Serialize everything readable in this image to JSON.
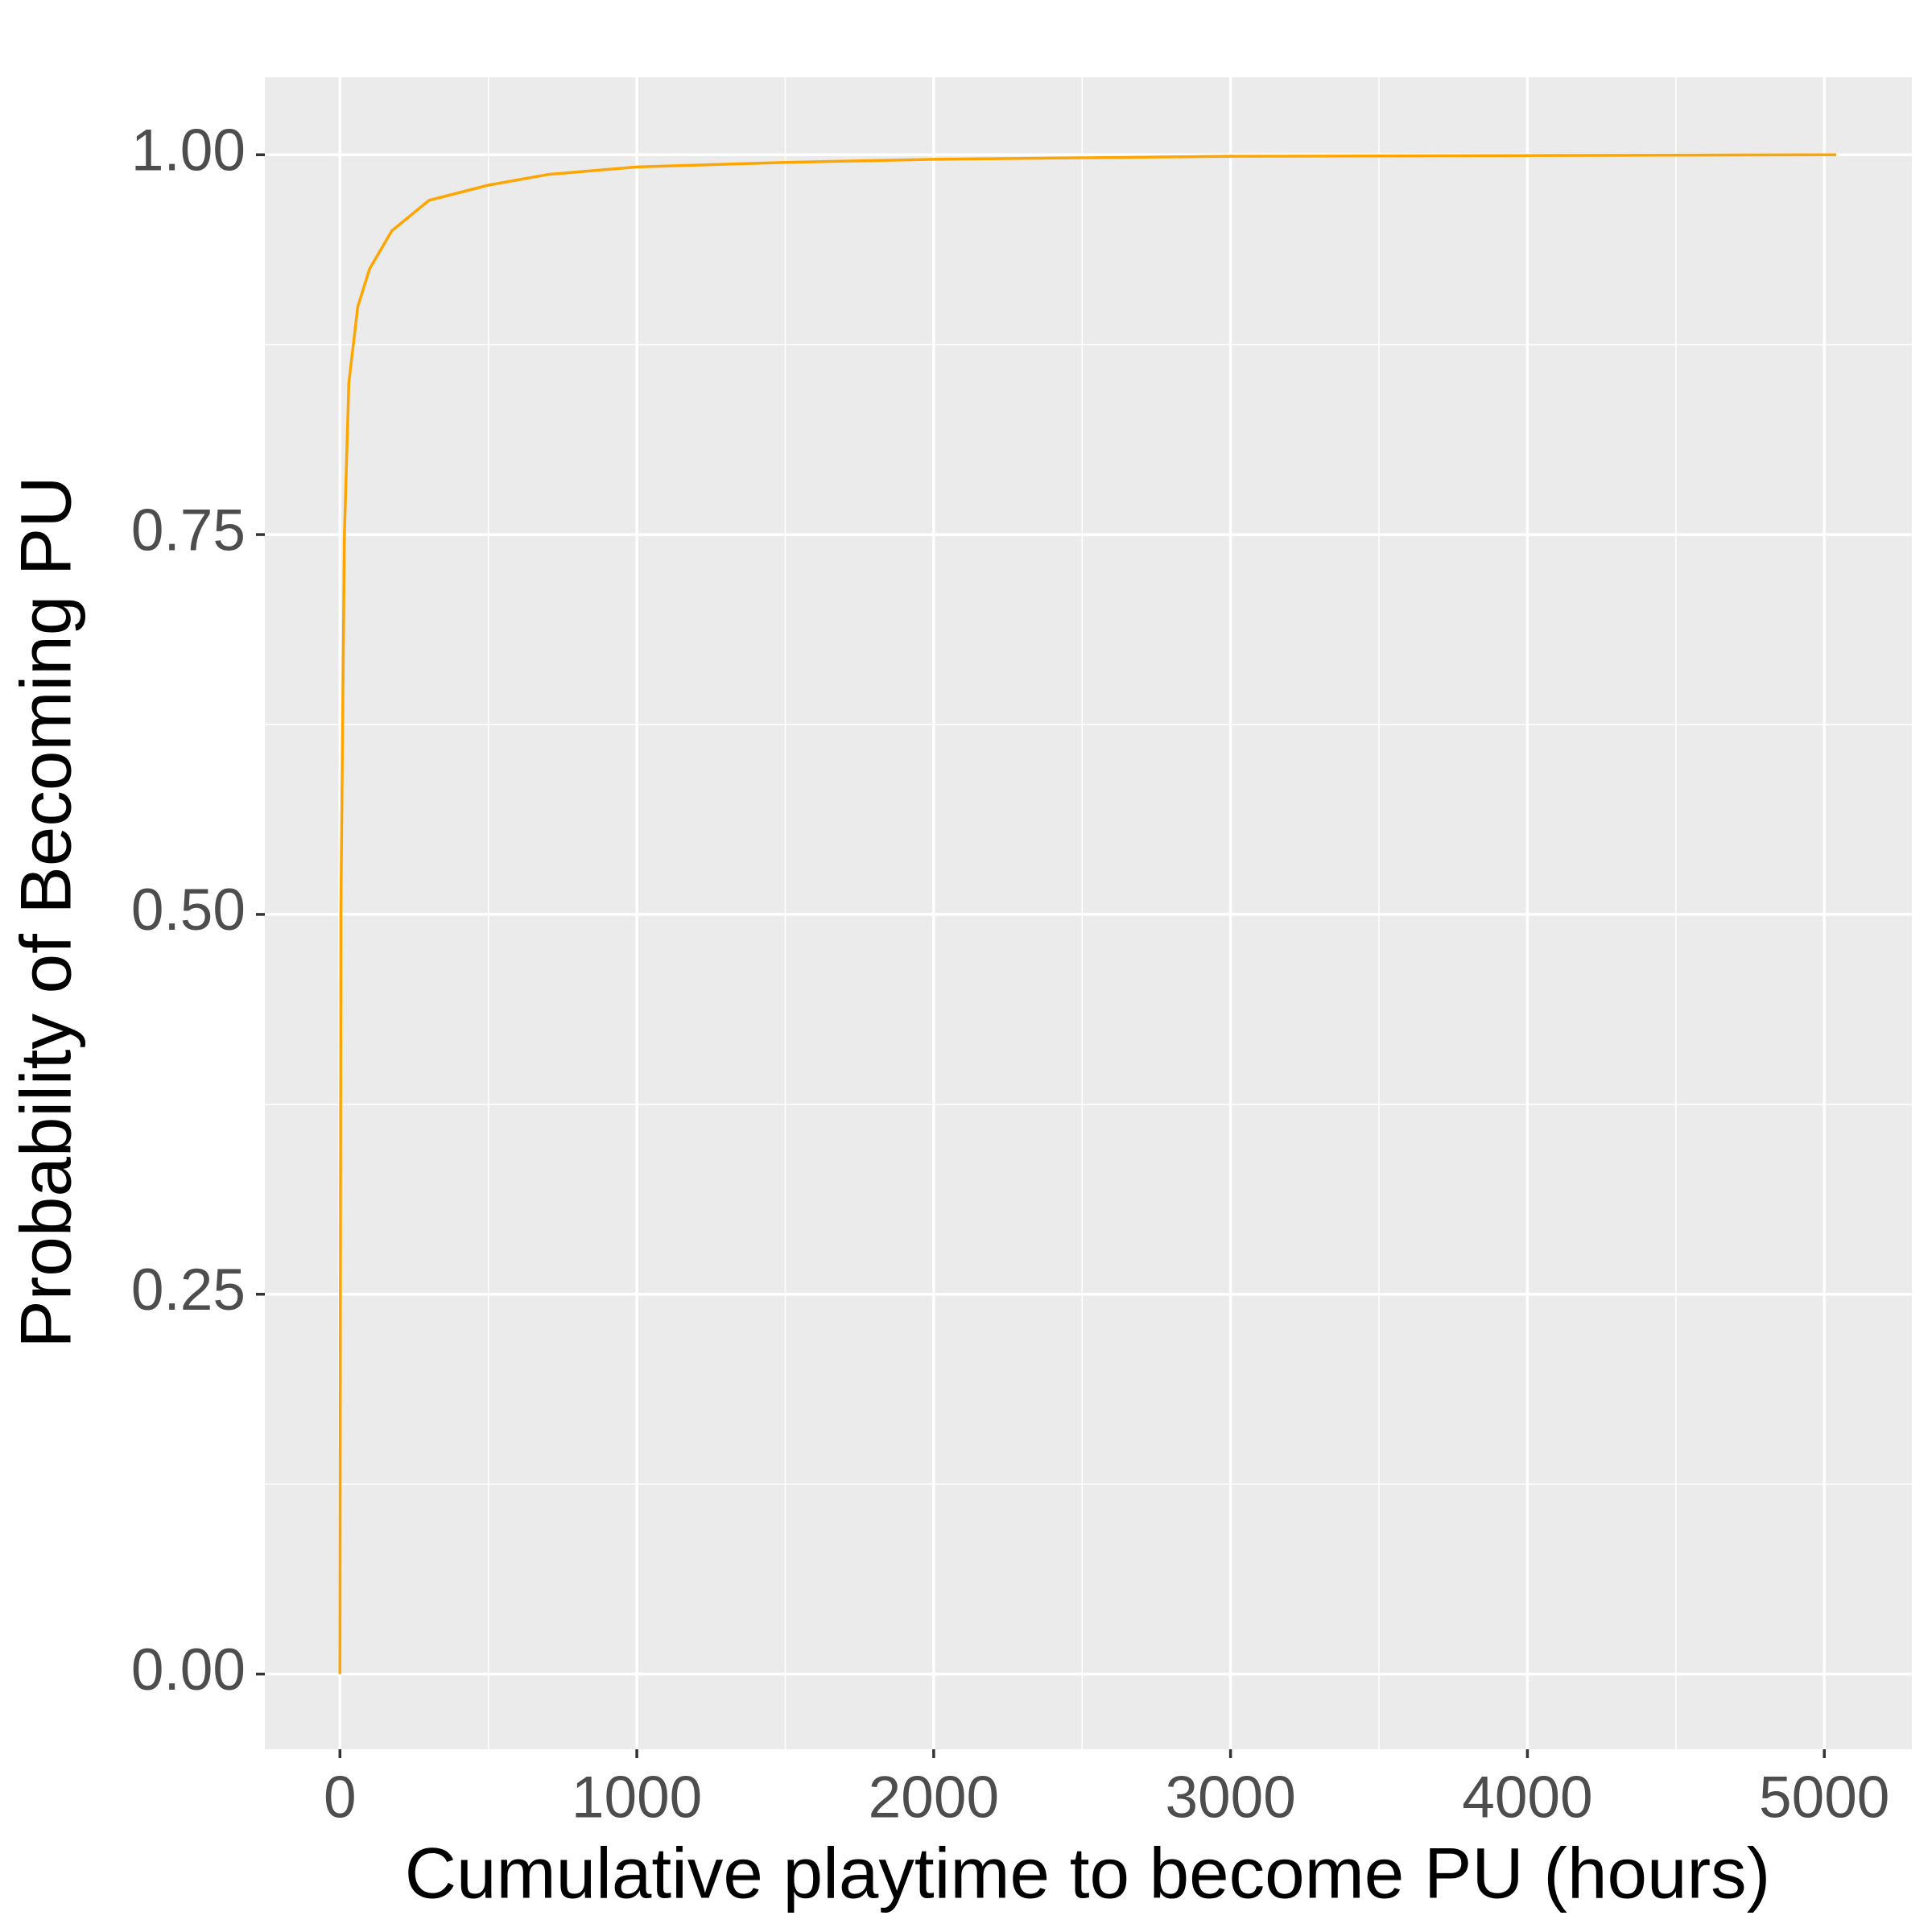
{
  "chart_data": {
    "type": "line",
    "x_label": "Cumulative playtime to become PU (hours)",
    "y_label": "Probability of Becoming PU",
    "x": [
      0,
      3,
      15,
      30,
      60,
      100,
      175,
      300,
      500,
      700,
      1000,
      1500,
      2000,
      3000,
      4000,
      5040
    ],
    "values": [
      0,
      0.5,
      0.75,
      0.85,
      0.9,
      0.925,
      0.95,
      0.97,
      0.98,
      0.987,
      0.992,
      0.995,
      0.997,
      0.999,
      0.9995,
      1
    ],
    "color": "#FFA500",
    "xlim": [
      -253,
      5295
    ],
    "ylim": [
      -0.0495,
      1.051
    ],
    "xticks": [
      0,
      1000,
      2000,
      3000,
      4000,
      5000
    ],
    "yticks": [
      {
        "value": 0,
        "label": "0.00"
      },
      {
        "value": 0.25,
        "label": "0.25"
      },
      {
        "value": 0.5,
        "label": "0.50"
      },
      {
        "value": 0.75,
        "label": "0.75"
      },
      {
        "value": 1,
        "label": "1.00"
      }
    ],
    "grid": true
  }
}
